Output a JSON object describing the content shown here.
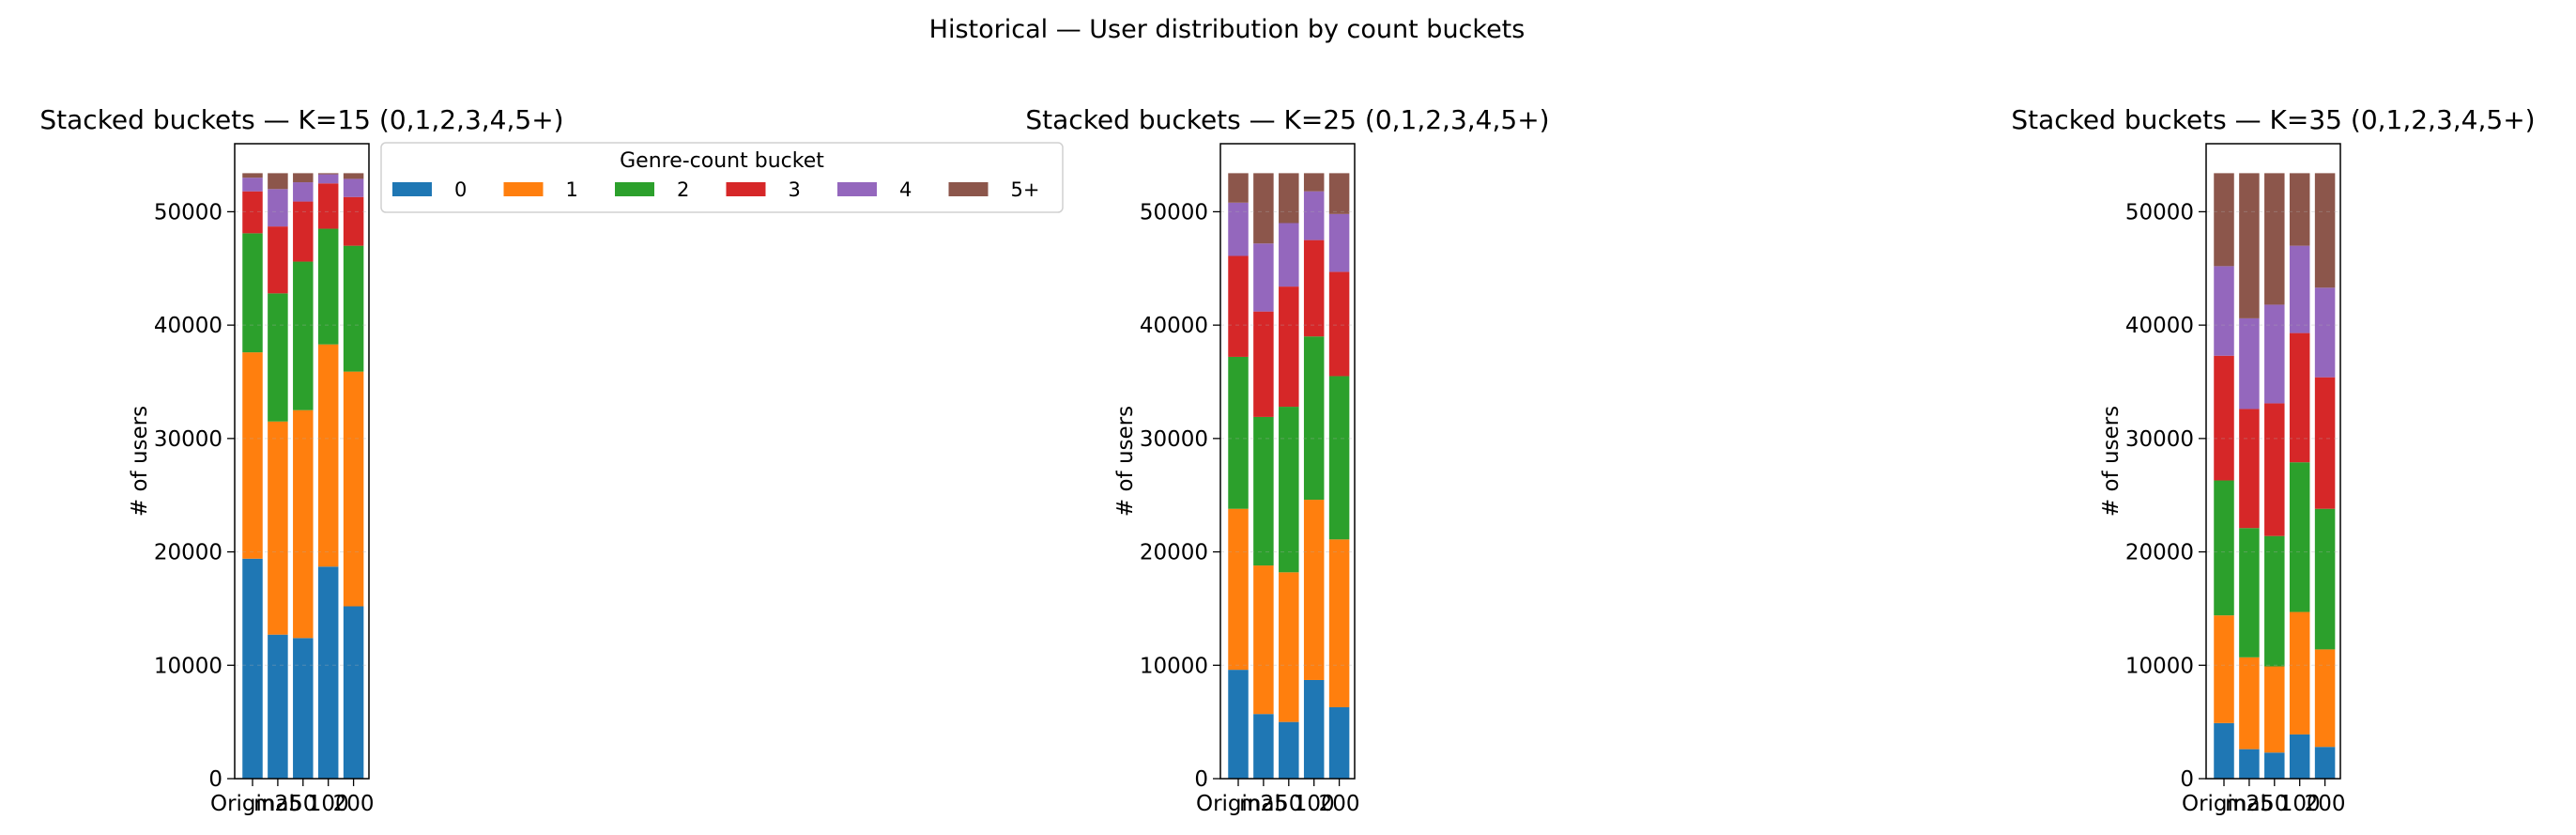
{
  "suptitle": "Historical — User distribution by count buckets",
  "legend": {
    "title": "Genre-count bucket",
    "placement": "upper-right-of-first-panel",
    "entries": [
      "0",
      "1",
      "2",
      "3",
      "4",
      "5+"
    ]
  },
  "colors": {
    "0": "#1f77b4",
    "1": "#ff7f0e",
    "2": "#2ca02c",
    "3": "#d62728",
    "4": "#9467bd",
    "5+": "#8c564b"
  },
  "chart_data": [
    {
      "type": "bar",
      "stacked": true,
      "title": "Stacked buckets — K=15  (0,1,2,3,4,5+)",
      "ylabel": "# of users",
      "xlabel": "",
      "ylim": [
        0,
        56000
      ],
      "yticks": [
        0,
        10000,
        20000,
        30000,
        40000,
        50000
      ],
      "categories": [
        "Original",
        "m25",
        "50",
        "100",
        "200"
      ],
      "category_labels_rendered": [
        "Original",
        "m25",
        "50",
        "100",
        "200"
      ],
      "series": [
        {
          "name": "0",
          "values": [
            19400,
            12700,
            12400,
            18700,
            15200
          ]
        },
        {
          "name": "1",
          "values": [
            18200,
            18800,
            20100,
            19600,
            20700
          ]
        },
        {
          "name": "2",
          "values": [
            10500,
            11300,
            13100,
            10200,
            11100
          ]
        },
        {
          "name": "3",
          "values": [
            3700,
            5900,
            5300,
            4000,
            4300
          ]
        },
        {
          "name": "4",
          "values": [
            1200,
            3300,
            1700,
            800,
            1600
          ]
        },
        {
          "name": "5+",
          "values": [
            400,
            1400,
            800,
            100,
            500
          ]
        }
      ]
    },
    {
      "type": "bar",
      "stacked": true,
      "title": "Stacked buckets — K=25  (0,1,2,3,4,5+)",
      "ylabel": "# of users",
      "xlabel": "",
      "ylim": [
        0,
        56000
      ],
      "yticks": [
        0,
        10000,
        20000,
        30000,
        40000,
        50000
      ],
      "categories": [
        "Original",
        "m25",
        "50",
        "100",
        "200"
      ],
      "category_labels_rendered": [
        "Original",
        "m25",
        "50",
        "100",
        "200"
      ],
      "series": [
        {
          "name": "0",
          "values": [
            9600,
            5700,
            5000,
            8700,
            6300
          ]
        },
        {
          "name": "1",
          "values": [
            14200,
            13100,
            13200,
            15900,
            14800
          ]
        },
        {
          "name": "2",
          "values": [
            13400,
            13100,
            14600,
            14400,
            14400
          ]
        },
        {
          "name": "3",
          "values": [
            8900,
            9300,
            10600,
            8500,
            9200
          ]
        },
        {
          "name": "4",
          "values": [
            4700,
            6000,
            5600,
            4300,
            5100
          ]
        },
        {
          "name": "5+",
          "values": [
            2600,
            6200,
            4400,
            1600,
            3600
          ]
        }
      ]
    },
    {
      "type": "bar",
      "stacked": true,
      "title": "Stacked buckets — K=35  (0,1,2,3,4,5+)",
      "ylabel": "# of users",
      "xlabel": "",
      "ylim": [
        0,
        56000
      ],
      "yticks": [
        0,
        10000,
        20000,
        30000,
        40000,
        50000
      ],
      "categories": [
        "Original",
        "m25",
        "50",
        "100",
        "200"
      ],
      "category_labels_rendered": [
        "Original",
        "m25",
        "50",
        "100",
        "200"
      ],
      "series": [
        {
          "name": "0",
          "values": [
            4900,
            2600,
            2300,
            3900,
            2800
          ]
        },
        {
          "name": "1",
          "values": [
            9500,
            8100,
            7600,
            10800,
            8600
          ]
        },
        {
          "name": "2",
          "values": [
            11900,
            11400,
            11500,
            13200,
            12400
          ]
        },
        {
          "name": "3",
          "values": [
            11000,
            10500,
            11700,
            11400,
            11600
          ]
        },
        {
          "name": "4",
          "values": [
            7900,
            8000,
            8700,
            7700,
            7900
          ]
        },
        {
          "name": "5+",
          "values": [
            8200,
            12800,
            11600,
            6400,
            10100
          ]
        }
      ]
    }
  ]
}
